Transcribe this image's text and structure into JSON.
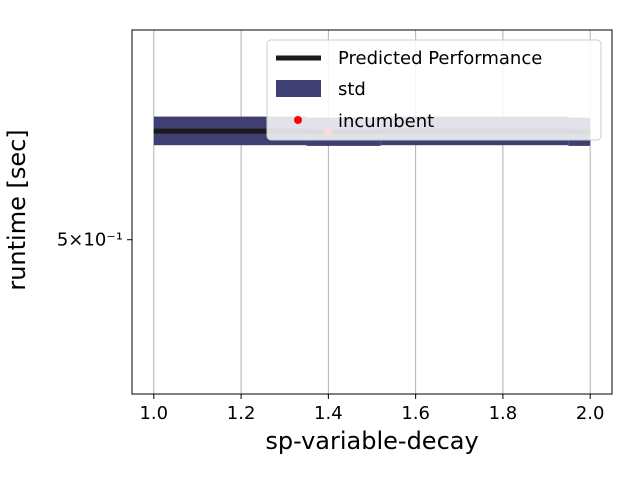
{
  "chart_data": {
    "type": "line",
    "xlabel": "sp-variable-decay",
    "ylabel": "runtime [sec]",
    "xlim": [
      0.95,
      2.05
    ],
    "ylim": [
      0.46,
      0.56
    ],
    "y_scale": "log",
    "grid": "x-only",
    "legend_position": "top-right",
    "x_ticks": [
      1.0,
      1.2,
      1.4,
      1.6,
      1.8,
      2.0
    ],
    "x_tick_labels": [
      "1.0",
      "1.2",
      "1.4",
      "1.6",
      "1.8",
      "2.0"
    ],
    "y_ticks": [
      0.5
    ],
    "y_tick_labels": [
      "5×10⁻¹"
    ],
    "legend": {
      "predicted": "Predicted Performance",
      "std": "std",
      "incumbent": "incumbent"
    },
    "series": [
      {
        "name": "Predicted Performance",
        "kind": "line",
        "color": "#1a1a1a",
        "x": [
          1.0,
          1.35,
          1.35,
          1.52,
          1.52,
          1.95,
          1.95,
          2.0
        ],
        "y": [
          0.5302,
          0.5302,
          0.53,
          0.53,
          0.5302,
          0.5302,
          0.53,
          0.53
        ]
      },
      {
        "name": "std",
        "kind": "band",
        "color": "#3f3f73",
        "segments": [
          {
            "x": [
              1.0,
              1.35
            ],
            "lower": 0.5262,
            "upper": 0.5344
          },
          {
            "x": [
              1.35,
              1.52
            ],
            "lower": 0.526,
            "upper": 0.5341
          },
          {
            "x": [
              1.52,
              1.95
            ],
            "lower": 0.5262,
            "upper": 0.5344
          },
          {
            "x": [
              1.95,
              2.0
            ],
            "lower": 0.526,
            "upper": 0.5341
          }
        ]
      },
      {
        "name": "incumbent",
        "kind": "scatter",
        "color": "#ff0000",
        "x": [
          1.4
        ],
        "y": [
          0.53
        ]
      }
    ]
  }
}
